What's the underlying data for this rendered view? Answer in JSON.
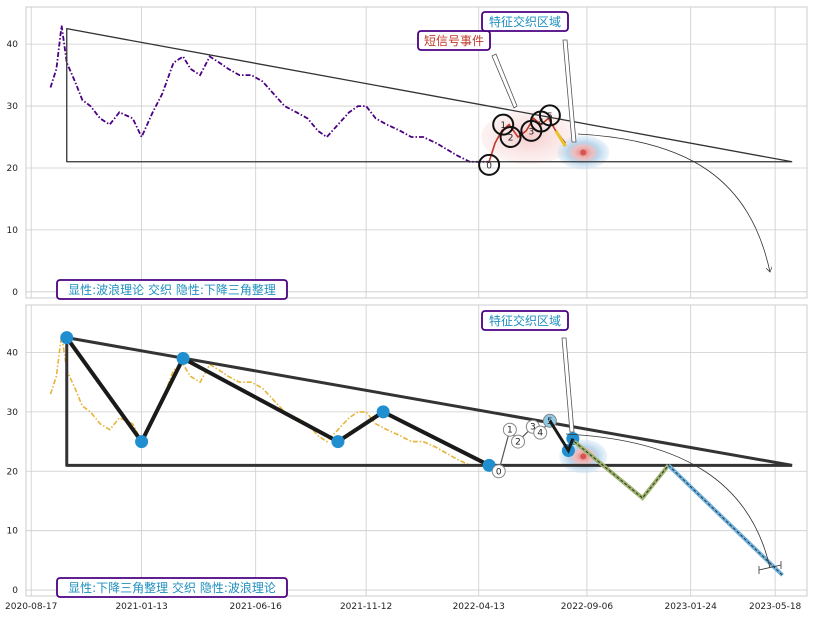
{
  "chart_data": [
    {
      "type": "line",
      "panel": "top",
      "ylim": [
        -1,
        46
      ],
      "y_ticks": [
        0,
        10,
        20,
        30,
        40
      ],
      "grid": true,
      "series": [
        {
          "style": "dash-dot",
          "color": "#4b0082",
          "x": [
            "2020-09-12",
            "2020-09-20",
            "2020-09-27",
            "2020-10-04",
            "2020-10-15",
            "2020-10-25",
            "2020-11-05",
            "2020-11-18",
            "2020-12-01",
            "2020-12-14",
            "2021-01-01",
            "2021-01-13",
            "2021-01-28",
            "2021-02-10",
            "2021-02-25",
            "2021-03-10",
            "2021-03-20",
            "2021-04-02",
            "2021-04-15",
            "2021-04-28",
            "2021-05-10",
            "2021-05-25",
            "2021-06-10",
            "2021-06-25",
            "2021-07-10",
            "2021-07-25",
            "2021-08-10",
            "2021-08-25",
            "2021-09-08",
            "2021-09-20",
            "2021-10-05",
            "2021-10-20",
            "2021-11-01",
            "2021-11-12",
            "2021-11-25",
            "2021-12-10",
            "2021-12-28",
            "2022-01-12",
            "2022-01-28",
            "2022-02-15",
            "2022-03-01",
            "2022-03-15",
            "2022-04-01",
            "2022-04-15",
            "2022-04-27"
          ],
          "y": [
            33,
            36,
            43,
            37,
            34,
            31,
            30,
            28,
            27,
            29,
            28,
            25,
            29,
            32,
            37,
            38,
            36,
            35,
            38,
            37,
            36,
            35,
            35,
            34,
            32,
            30,
            29,
            28,
            26,
            25,
            27,
            29,
            30,
            30,
            28,
            27,
            26,
            25,
            25,
            24,
            23,
            22,
            21,
            21,
            21
          ]
        },
        {
          "style": "solid",
          "color": "#c0392b",
          "x": [
            "2022-04-27",
            "2022-05-05",
            "2022-05-14",
            "2022-05-24",
            "2022-06-05",
            "2022-06-16",
            "2022-06-26",
            "2022-07-06",
            "2022-07-16",
            "2022-07-26",
            "2022-08-08"
          ],
          "y": [
            21,
            24,
            26,
            27,
            25,
            26,
            28,
            27,
            28,
            26,
            24
          ]
        }
      ],
      "triangle": {
        "apex": {
          "x": "2020-10-04",
          "y": 42.5
        },
        "end": {
          "x": "2023-06-10",
          "y": 21
        },
        "base_y": 21
      },
      "zigzag_points": [
        {
          "label": "0",
          "x": "2022-04-27",
          "y": 20.5
        },
        {
          "label": "1",
          "x": "2022-05-16",
          "y": 27
        },
        {
          "label": "2",
          "x": "2022-05-26",
          "y": 25
        },
        {
          "label": "3",
          "x": "2022-06-23",
          "y": 26
        },
        {
          "label": "4",
          "x": "2022-07-06",
          "y": 27.5
        },
        {
          "label": "5",
          "x": "2022-07-18",
          "y": 28.5
        }
      ],
      "annotations": {
        "short_signal": "短信号事件",
        "feature_zone": "特征交织区域",
        "summary": "显性:波浪理论 交织 隐性:下降三角整理"
      }
    },
    {
      "type": "line",
      "panel": "bottom",
      "ylim": [
        -1,
        48
      ],
      "y_ticks": [
        0,
        10,
        20,
        30,
        40
      ],
      "grid": true,
      "series": [
        {
          "style": "dash-dot",
          "color": "#e8b339",
          "x": [
            "2020-09-12",
            "2020-09-20",
            "2020-09-27",
            "2020-10-04",
            "2020-10-15",
            "2020-10-25",
            "2020-11-05",
            "2020-11-18",
            "2020-12-01",
            "2020-12-14",
            "2021-01-01",
            "2021-01-13",
            "2021-01-28",
            "2021-02-10",
            "2021-02-25",
            "2021-03-10",
            "2021-03-20",
            "2021-04-02",
            "2021-04-15",
            "2021-04-28",
            "2021-05-10",
            "2021-05-25",
            "2021-06-10",
            "2021-06-25",
            "2021-07-10",
            "2021-07-25",
            "2021-08-10",
            "2021-08-25",
            "2021-09-08",
            "2021-09-20",
            "2021-10-05",
            "2021-10-20",
            "2021-11-01",
            "2021-11-12",
            "2021-11-25",
            "2021-12-10",
            "2021-12-28",
            "2022-01-12",
            "2022-01-28",
            "2022-02-15",
            "2022-03-01",
            "2022-03-15",
            "2022-04-01",
            "2022-04-15",
            "2022-04-27"
          ],
          "y": [
            33,
            36,
            43,
            37,
            34,
            31,
            30,
            28,
            27,
            29,
            28,
            25,
            29,
            32,
            37,
            38,
            36,
            35,
            38,
            37,
            36,
            35,
            35,
            34,
            32,
            30,
            29,
            28,
            26,
            25,
            27,
            29,
            30,
            30,
            28,
            27,
            26,
            25,
            25,
            24,
            23,
            22,
            21,
            21,
            21
          ]
        }
      ],
      "pattern_points": [
        {
          "x": "2020-10-04",
          "y": 42.5
        },
        {
          "x": "2021-01-13",
          "y": 25
        },
        {
          "x": "2021-03-10",
          "y": 39
        },
        {
          "x": "2021-10-05",
          "y": 25
        },
        {
          "x": "2021-12-05",
          "y": 30
        },
        {
          "x": "2022-04-27",
          "y": 21
        }
      ],
      "triangle": {
        "apex": {
          "x": "2020-10-04",
          "y": 42.5
        },
        "end": {
          "x": "2023-06-10",
          "y": 21
        },
        "base_y": 21
      },
      "wave_points": [
        {
          "label": "0",
          "x": "2022-05-10",
          "y": 20
        },
        {
          "label": "1",
          "x": "2022-05-25",
          "y": 27
        },
        {
          "label": "2",
          "x": "2022-06-05",
          "y": 25
        },
        {
          "label": "3",
          "x": "2022-06-25",
          "y": 27.5
        },
        {
          "label": "4",
          "x": "2022-07-05",
          "y": 26.5
        },
        {
          "label": "5",
          "x": "2022-07-18",
          "y": 28.5
        }
      ],
      "projection": [
        {
          "x": "2022-08-20",
          "y": 25
        },
        {
          "x": "2022-11-20",
          "y": 15.5
        },
        {
          "x": "2022-12-25",
          "y": 21
        },
        {
          "x": "2023-05-28",
          "y": 2.5
        }
      ],
      "annotations": {
        "feature_zone": "特征交织区域",
        "summary": "显性:下降三角整理 交织 隐性:波浪理论"
      }
    }
  ],
  "x_ticks": [
    "2020-08-17",
    "2021-01-13",
    "2021-06-16",
    "2021-11-12",
    "2022-04-13",
    "2022-09-06",
    "2023-01-24",
    "2023-05-18"
  ],
  "colors": {
    "grid": "#cccccc",
    "axis_frame": "#cccccc",
    "annotation_border": "#4b0082",
    "annotation_text_blue": "#1f8fbf",
    "annotation_text_red": "#c0392b",
    "triangle": "#333333",
    "point_blue": "#1f8fd0",
    "projection_green": "#9db36b",
    "projection_blue": "#6fb3e0"
  }
}
